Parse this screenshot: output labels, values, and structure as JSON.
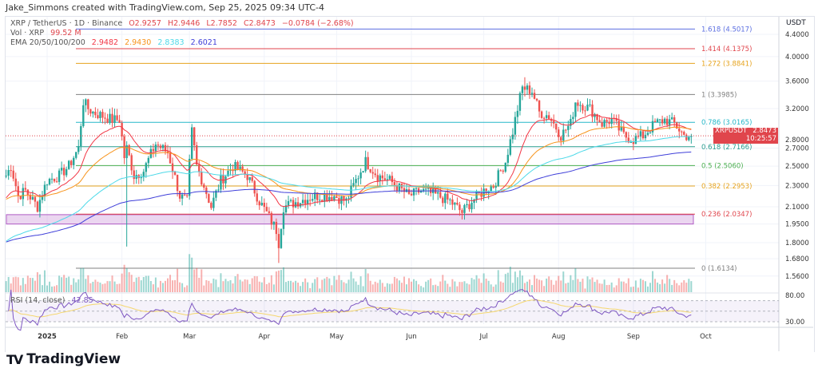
{
  "credit": "Jake_Simmons created with TradingView.com, Sep 25, 2025 09:34 UTC-4",
  "header": {
    "symbol": "XRP / TetherUS · 1D · Binance",
    "open": "O2.9257",
    "high": "H2.9446",
    "low": "L2.7852",
    "close": "C2.8473",
    "change": "−0.0784 (−2.68%)",
    "vol_label": "Vol · XRP",
    "vol_value": "99.52 M",
    "ema_label": "EMA 20/50/100/200",
    "ema_values": [
      "2.9482",
      "2.9430",
      "2.8383",
      "2.6021"
    ],
    "ema_colors": [
      "#f23645",
      "#f7931a",
      "#4dd9e8",
      "#3f3fd9"
    ]
  },
  "price_axis": {
    "unit": "USDT",
    "ticks": [
      "4.4000",
      "4.0000",
      "3.6000",
      "3.2000",
      "2.8000",
      "2.7000",
      "2.5000",
      "2.3000",
      "2.1000",
      "1.9500",
      "1.8000",
      "1.6800",
      "1.5600"
    ]
  },
  "last_price": {
    "symbol": "XRPUSDT",
    "price": "2.8473",
    "countdown": "10:25:57",
    "color": "#e0454c"
  },
  "fib_levels": [
    {
      "label": "1.618 (4.5017)",
      "price": 4.5017,
      "color": "#5b6ee1"
    },
    {
      "label": "1.414 (4.1375)",
      "price": 4.1375,
      "color": "#e0454c"
    },
    {
      "label": "1.272 (3.8841)",
      "price": 3.8841,
      "color": "#e6a31e"
    },
    {
      "label": "1 (3.3985)",
      "price": 3.3985,
      "color": "#808080"
    },
    {
      "label": "0.786 (3.0165)",
      "price": 3.0165,
      "color": "#26b7c8"
    },
    {
      "label": "0.618 (2.7166)",
      "price": 2.7166,
      "color": "#2a9d8f"
    },
    {
      "label": "0.5 (2.5060)",
      "price": 2.506,
      "color": "#4caf50"
    },
    {
      "label": "0.382 (2.2953)",
      "price": 2.2953,
      "color": "#e6a31e"
    },
    {
      "label": "0.236 (2.0347)",
      "price": 2.0347,
      "color": "#e0454c"
    },
    {
      "label": "0 (1.6134)",
      "price": 1.6134,
      "color": "#808080"
    }
  ],
  "support_zone": {
    "from": 1.95,
    "to": 2.03,
    "color": "#b05cc4"
  },
  "rsi": {
    "label": "RSI (14, close)",
    "value": "42.85",
    "ticks": [
      "80.00",
      "30.00"
    ],
    "color": "#7e57c2"
  },
  "chart_data": {
    "type": "candlestick",
    "scale": "log",
    "ylim": [
      1.52,
      4.6
    ],
    "x_ticks": [
      "2025",
      "Feb",
      "Mar",
      "Apr",
      "May",
      "Jun",
      "Jul",
      "Aug",
      "Sep",
      "Oct"
    ],
    "up_color": "#26a69a",
    "down_color": "#ef5350",
    "closes": [
      [
        "2024-12-15",
        2.4
      ],
      [
        "2024-12-17",
        2.5
      ],
      [
        "2024-12-20",
        2.2
      ],
      [
        "2024-12-23",
        2.25
      ],
      [
        "2024-12-28",
        2.1
      ],
      [
        "2025-01-01",
        2.35
      ],
      [
        "2025-01-06",
        2.4
      ],
      [
        "2025-01-10",
        2.5
      ],
      [
        "2025-01-14",
        2.7
      ],
      [
        "2025-01-16",
        3.3
      ],
      [
        "2025-01-18",
        3.2
      ],
      [
        "2025-01-20",
        3.15
      ],
      [
        "2025-01-24",
        3.1
      ],
      [
        "2025-01-28",
        3.05
      ],
      [
        "2025-01-31",
        3.05
      ],
      [
        "2025-02-02",
        2.6
      ],
      [
        "2025-02-03",
        2.7
      ],
      [
        "2025-02-06",
        2.4
      ],
      [
        "2025-02-10",
        2.45
      ],
      [
        "2025-02-15",
        2.75
      ],
      [
        "2025-02-20",
        2.65
      ],
      [
        "2025-02-25",
        2.2
      ],
      [
        "2025-02-28",
        2.15
      ],
      [
        "2025-03-02",
        2.9
      ],
      [
        "2025-03-04",
        2.5
      ],
      [
        "2025-03-10",
        2.1
      ],
      [
        "2025-03-14",
        2.35
      ],
      [
        "2025-03-19",
        2.5
      ],
      [
        "2025-03-25",
        2.4
      ],
      [
        "2025-03-30",
        2.15
      ],
      [
        "2025-04-06",
        1.9
      ],
      [
        "2025-04-07",
        1.8
      ],
      [
        "2025-04-09",
        2.1
      ],
      [
        "2025-04-15",
        2.15
      ],
      [
        "2025-04-22",
        2.2
      ],
      [
        "2025-04-30",
        2.2
      ],
      [
        "2025-05-05",
        2.15
      ],
      [
        "2025-05-10",
        2.4
      ],
      [
        "2025-05-13",
        2.55
      ],
      [
        "2025-05-18",
        2.4
      ],
      [
        "2025-05-23",
        2.35
      ],
      [
        "2025-05-31",
        2.2
      ],
      [
        "2025-06-05",
        2.25
      ],
      [
        "2025-06-12",
        2.2
      ],
      [
        "2025-06-17",
        2.15
      ],
      [
        "2025-06-22",
        2.05
      ],
      [
        "2025-06-26",
        2.15
      ],
      [
        "2025-07-01",
        2.25
      ],
      [
        "2025-07-05",
        2.3
      ],
      [
        "2025-07-10",
        2.55
      ],
      [
        "2025-07-13",
        2.9
      ],
      [
        "2025-07-17",
        3.5
      ],
      [
        "2025-07-21",
        3.45
      ],
      [
        "2025-07-24",
        3.15
      ],
      [
        "2025-07-28",
        3.1
      ],
      [
        "2025-08-02",
        2.85
      ],
      [
        "2025-08-06",
        3.0
      ],
      [
        "2025-08-08",
        3.3
      ],
      [
        "2025-08-14",
        3.2
      ],
      [
        "2025-08-19",
        3.0
      ],
      [
        "2025-08-23",
        3.05
      ],
      [
        "2025-08-28",
        2.85
      ],
      [
        "2025-09-01",
        2.8
      ],
      [
        "2025-09-05",
        2.85
      ],
      [
        "2025-09-10",
        3.0
      ],
      [
        "2025-09-14",
        3.05
      ],
      [
        "2025-09-18",
        3.0
      ],
      [
        "2025-09-22",
        2.85
      ],
      [
        "2025-09-25",
        2.8473
      ]
    ],
    "wicks": [
      [
        "2025-02-03",
        1.77
      ],
      [
        "2025-04-07",
        1.65
      ],
      [
        "2025-07-18",
        3.66
      ]
    ]
  },
  "branding": "TradingView"
}
